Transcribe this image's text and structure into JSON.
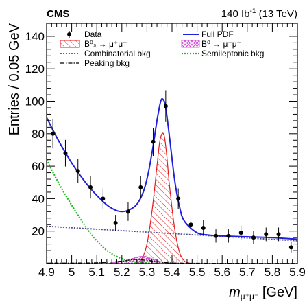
{
  "chart_data": {
    "type": "line",
    "experiment": "CMS",
    "lumi_prefix": "140 fb",
    "lumi_exp": "-1",
    "lumi_suffix": " (13 TeV)",
    "xlabel_m": "m",
    "xlabel_sub": "μ⁺μ⁻",
    "xlabel_unit": " [GeV]",
    "ylabel": "Entries / 0.05 GeV",
    "xlim": [
      4.9,
      5.9
    ],
    "ylim": [
      0,
      148
    ],
    "x_ticks": [
      4.9,
      5.0,
      5.1,
      5.2,
      5.3,
      5.4,
      5.5,
      5.6,
      5.7,
      5.8,
      5.9
    ],
    "x_tick_labels": [
      "4.9",
      "5",
      "5.1",
      "5.2",
      "5.3",
      "5.4",
      "5.5",
      "5.6",
      "5.7",
      "5.8",
      "5.9"
    ],
    "y_ticks": [
      20,
      40,
      60,
      80,
      100,
      120,
      140
    ],
    "y_tick_labels": [
      "20",
      "40",
      "60",
      "80",
      "100",
      "120",
      "140"
    ],
    "legend": {
      "data": "Data",
      "full_pdf": "Full PDF",
      "bs": "B⁰ₛ → μ⁺μ⁻",
      "b0": "B⁰ → μ⁺μ⁻",
      "comb": "Combinatorial bkg",
      "semi": "Semileptonic bkg",
      "peak": "Peaking bkg"
    },
    "colors": {
      "full_pdf": "#1f1fdc",
      "bs": "#e41a1c",
      "b0": "#cc44cc",
      "comb": "#4a4a8c",
      "semi": "#22bb22",
      "peak": "#000000"
    },
    "data_points": {
      "x": [
        4.925,
        4.975,
        5.025,
        5.075,
        5.125,
        5.175,
        5.225,
        5.275,
        5.325,
        5.375,
        5.425,
        5.475,
        5.525,
        5.575,
        5.625,
        5.675,
        5.725,
        5.775,
        5.825,
        5.875
      ],
      "y": [
        80,
        68,
        57,
        47,
        40,
        25,
        32,
        47,
        75,
        97,
        40,
        24,
        22,
        17,
        17,
        19,
        16,
        18,
        18,
        10
      ],
      "err": [
        9,
        8.2,
        7.5,
        6.9,
        6.3,
        5,
        5.7,
        6.9,
        8.7,
        9.8,
        6.3,
        4.9,
        4.7,
        4.1,
        4.1,
        4.4,
        4,
        4.2,
        4.2,
        3.2
      ]
    },
    "full_pdf": {
      "x": [
        4.9,
        4.95,
        5.0,
        5.05,
        5.1,
        5.15,
        5.2,
        5.25,
        5.28,
        5.3,
        5.32,
        5.34,
        5.355,
        5.365,
        5.375,
        5.39,
        5.41,
        5.43,
        5.45,
        5.5,
        5.55,
        5.6,
        5.7,
        5.8,
        5.9
      ],
      "y": [
        90,
        75,
        62,
        51,
        42,
        35,
        32,
        35,
        42,
        52,
        68,
        88,
        100,
        101,
        96,
        78,
        52,
        35,
        26,
        19,
        17.5,
        17,
        16.5,
        16,
        15
      ]
    },
    "bs_signal": {
      "x": [
        5.26,
        5.28,
        5.3,
        5.32,
        5.34,
        5.35,
        5.36,
        5.37,
        5.38,
        5.39,
        5.41,
        5.43,
        5.45,
        5.47
      ],
      "y": [
        0.5,
        3,
        12,
        32,
        60,
        74,
        80,
        78,
        65,
        48,
        22,
        7,
        1.5,
        0.3
      ]
    },
    "b0_signal": {
      "x": [
        5.15,
        5.2,
        5.25,
        5.28,
        5.3,
        5.33,
        5.36,
        5.4
      ],
      "y": [
        0.2,
        1.2,
        3.5,
        4.5,
        4,
        2.5,
        1,
        0.2
      ]
    },
    "comb_bkg": {
      "x": [
        4.9,
        5.9
      ],
      "y": [
        23,
        14
      ]
    },
    "semi_bkg": {
      "x": [
        4.9,
        4.95,
        5.0,
        5.05,
        5.1,
        5.15,
        5.2,
        5.25,
        5.3,
        5.35
      ],
      "y": [
        64,
        49,
        36,
        24,
        14,
        7,
        3,
        1,
        0.3,
        0
      ]
    },
    "peak_bkg": {
      "x": [
        4.9,
        5.1,
        5.2,
        5.25,
        5.3,
        5.35,
        5.4,
        5.5,
        5.9
      ],
      "y": [
        0.3,
        0.5,
        1.5,
        2.5,
        2,
        1,
        0.4,
        0.2,
        0.1
      ]
    }
  }
}
